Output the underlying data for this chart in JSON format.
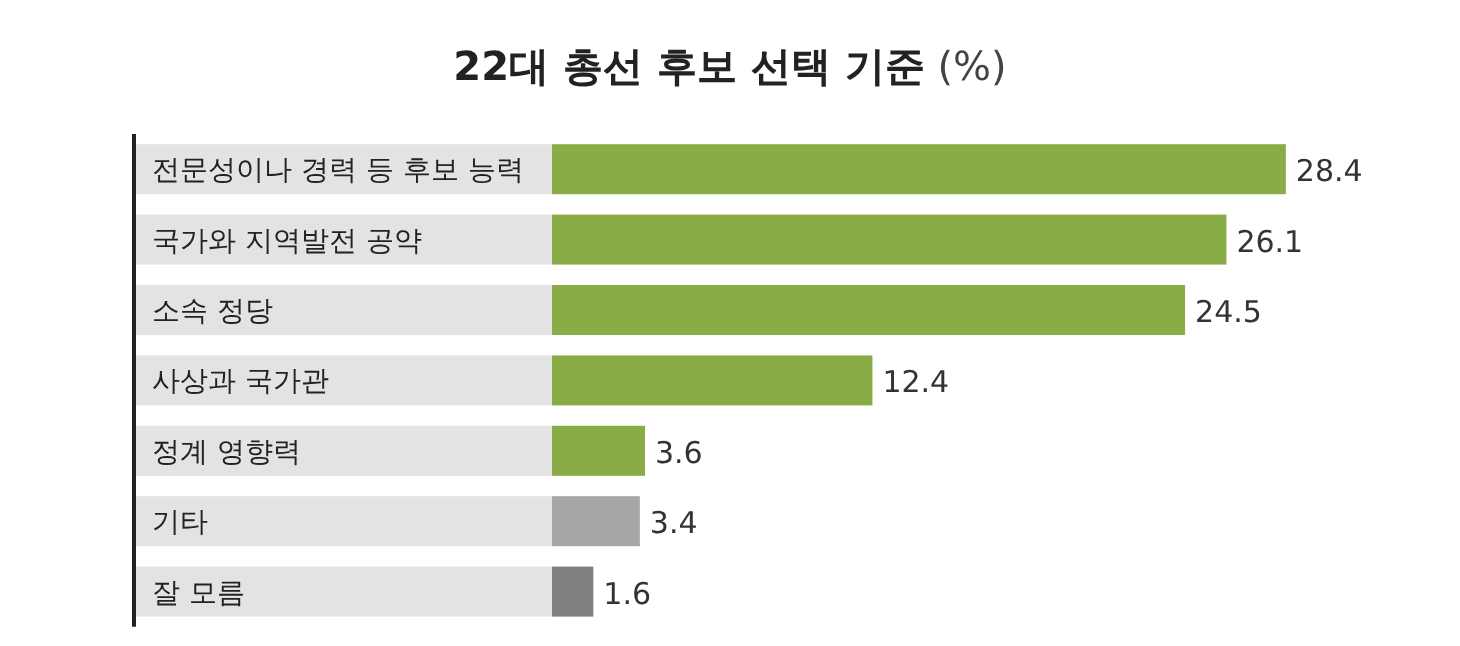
{
  "chart_data": {
    "type": "bar",
    "orientation": "horizontal",
    "title": "**22대 총선 후보 선택 기준** (%)",
    "categories": [
      "전문성이나 경력 등 후보 능력",
      "국가와 지역발전 공약",
      "소속 정당",
      "사상과 국가관",
      "정계 영향력",
      "기타",
      "잘 모름"
    ],
    "values": [
      28.4,
      26.1,
      24.5,
      12.4,
      3.6,
      3.4,
      1.6
    ],
    "colors": [
      "#8aac46",
      "#8aac46",
      "#8aac46",
      "#8aac46",
      "#8aac46",
      "#a6a6a6",
      "#7f7f7f"
    ],
    "data_labels": true
  }
}
